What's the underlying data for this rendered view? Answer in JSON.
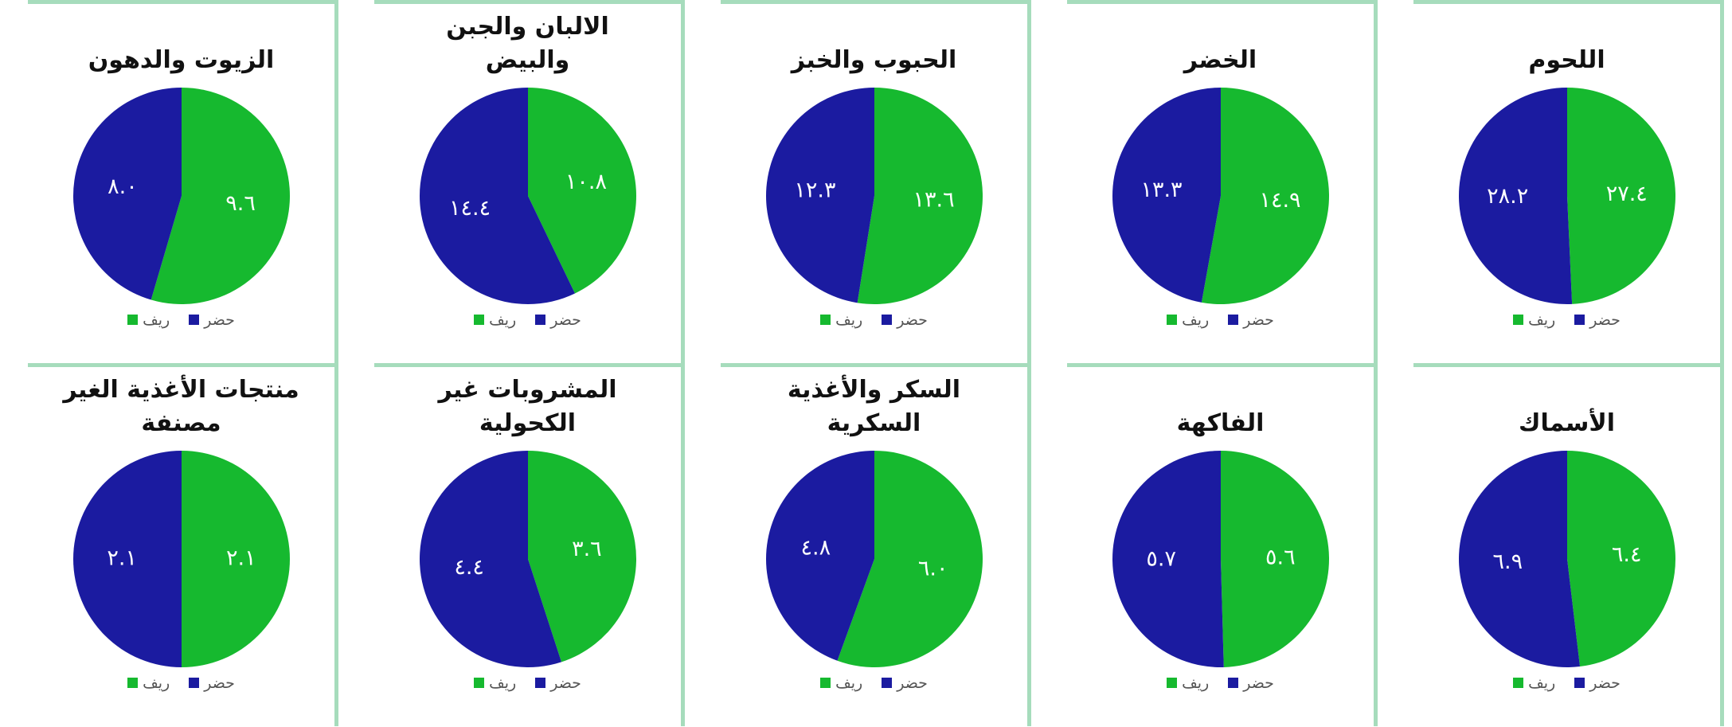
{
  "chart_data": [
    {
      "type": "pie",
      "title": "اللحوم",
      "categories": [
        "ريف",
        "حضر"
      ],
      "values": [
        27.4,
        28.2
      ],
      "value_labels": [
        "٢٧.٤",
        "٢٨.٢"
      ],
      "colors": [
        "#16b92f",
        "#1b1ba0"
      ]
    },
    {
      "type": "pie",
      "title": "الخضر",
      "categories": [
        "ريف",
        "حضر"
      ],
      "values": [
        14.9,
        13.3
      ],
      "value_labels": [
        "١٤.٩",
        "١٣.٣"
      ],
      "colors": [
        "#16b92f",
        "#1b1ba0"
      ]
    },
    {
      "type": "pie",
      "title": "الحبوب والخبز",
      "categories": [
        "ريف",
        "حضر"
      ],
      "values": [
        13.6,
        12.3
      ],
      "value_labels": [
        "١٣.٦",
        "١٢.٣"
      ],
      "colors": [
        "#16b92f",
        "#1b1ba0"
      ]
    },
    {
      "type": "pie",
      "title": "الالبان والجبن والبيض",
      "categories": [
        "ريف",
        "حضر"
      ],
      "values": [
        10.8,
        14.4
      ],
      "value_labels": [
        "١٠.٨",
        "١٤.٤"
      ],
      "colors": [
        "#16b92f",
        "#1b1ba0"
      ]
    },
    {
      "type": "pie",
      "title": "الزيوت والدهون",
      "categories": [
        "ريف",
        "حضر"
      ],
      "values": [
        9.6,
        8.0
      ],
      "value_labels": [
        "٩.٦",
        "٨.٠"
      ],
      "colors": [
        "#16b92f",
        "#1b1ba0"
      ]
    },
    {
      "type": "pie",
      "title": "الأسماك",
      "categories": [
        "ريف",
        "حضر"
      ],
      "values": [
        6.4,
        6.9
      ],
      "value_labels": [
        "٦.٤",
        "٦.٩"
      ],
      "colors": [
        "#16b92f",
        "#1b1ba0"
      ]
    },
    {
      "type": "pie",
      "title": "الفاكهة",
      "categories": [
        "ريف",
        "حضر"
      ],
      "values": [
        5.6,
        5.7
      ],
      "value_labels": [
        "٥.٦",
        "٥.٧"
      ],
      "colors": [
        "#16b92f",
        "#1b1ba0"
      ]
    },
    {
      "type": "pie",
      "title": "السكر والأغذية السكرية",
      "categories": [
        "ريف",
        "حضر"
      ],
      "values": [
        6.0,
        4.8
      ],
      "value_labels": [
        "٦.٠",
        "٤.٨"
      ],
      "colors": [
        "#16b92f",
        "#1b1ba0"
      ]
    },
    {
      "type": "pie",
      "title": "المشروبات غير الكحولية",
      "categories": [
        "ريف",
        "حضر"
      ],
      "values": [
        3.6,
        4.4
      ],
      "value_labels": [
        "٣.٦",
        "٤.٤"
      ],
      "colors": [
        "#16b92f",
        "#1b1ba0"
      ]
    },
    {
      "type": "pie",
      "title": "منتجات الأغذية الغير مصنفة",
      "categories": [
        "ريف",
        "حضر"
      ],
      "values": [
        2.1,
        2.1
      ],
      "value_labels": [
        "٢.١",
        "٢.١"
      ],
      "colors": [
        "#16b92f",
        "#1b1ba0"
      ]
    }
  ]
}
